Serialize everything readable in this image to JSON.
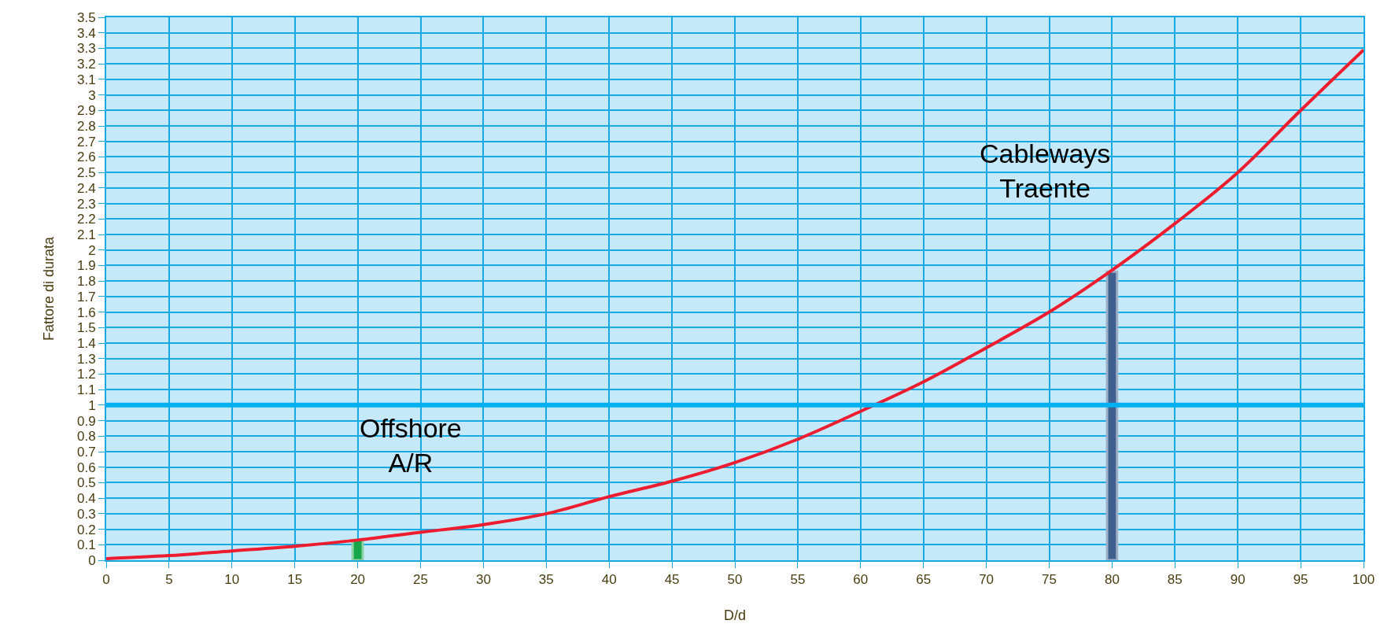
{
  "chart_data": {
    "type": "line",
    "xlabel": "D/d",
    "ylabel": "Fattore di durata",
    "x": [
      0,
      5,
      10,
      15,
      20,
      25,
      30,
      35,
      40,
      45,
      50,
      55,
      60,
      65,
      70,
      75,
      80,
      85,
      90,
      95,
      100
    ],
    "series": [
      {
        "color": "#ed1c2e",
        "values": [
          0.01,
          0.03,
          0.06,
          0.09,
          0.13,
          0.18,
          0.23,
          0.3,
          0.41,
          0.51,
          0.63,
          0.78,
          0.96,
          1.15,
          1.37,
          1.6,
          1.87,
          2.17,
          2.5,
          2.9,
          3.29
        ]
      },
      {
        "type": "bar",
        "color": "#17a64a",
        "x": [
          20
        ],
        "values": [
          0.13
        ]
      },
      {
        "type": "bar",
        "color": "#3f5f8f",
        "x": [
          80
        ],
        "values": [
          1.86
        ]
      }
    ],
    "ref_lines": [
      {
        "axis": "y",
        "value": 1,
        "color": "#00b0f0"
      }
    ],
    "annotations": [
      "Offshore\nA/R",
      "Cableways\nTraente"
    ],
    "xlim": [
      0,
      100
    ],
    "xticks": [
      0,
      5,
      10,
      15,
      20,
      25,
      30,
      35,
      40,
      45,
      50,
      55,
      60,
      65,
      70,
      75,
      80,
      85,
      90,
      95,
      100
    ],
    "ylim": [
      0,
      3.5
    ],
    "yticks": [
      0,
      0.1,
      0.2,
      0.3,
      0.4,
      0.5,
      0.6,
      0.7,
      0.8,
      0.9,
      1,
      1.1,
      1.2,
      1.3,
      1.4,
      1.5,
      1.6,
      1.7,
      1.8,
      1.9,
      2,
      2.1,
      2.2,
      2.3,
      2.4,
      2.5,
      2.6,
      2.7,
      2.8,
      2.9,
      3,
      3.1,
      3.2,
      3.3,
      3.4,
      3.5
    ],
    "grid": true,
    "marker": "none",
    "line_style": "solid"
  }
}
